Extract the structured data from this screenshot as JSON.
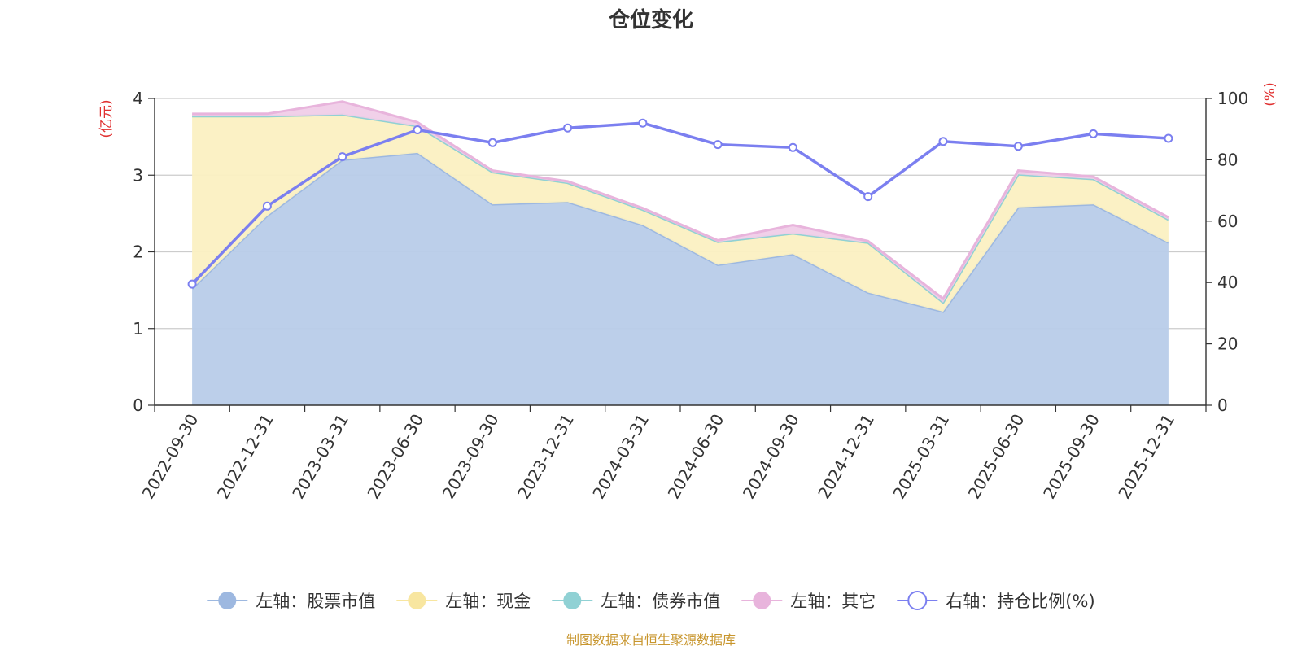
{
  "chart_data": {
    "type": "area",
    "title": "仓位变化",
    "y_left_unit": "(亿元)",
    "y_right_unit": "(%)",
    "y_left_range": [
      0,
      4
    ],
    "y_left_ticks": [
      "0",
      "1",
      "2",
      "3",
      "4"
    ],
    "y_right_range": [
      0,
      100
    ],
    "y_right_ticks": [
      "0",
      "20",
      "40",
      "60",
      "80",
      "100"
    ],
    "categories": [
      "2022-09-30",
      "2022-12-31",
      "2023-03-31",
      "2023-06-30",
      "2023-09-30",
      "2023-12-31",
      "2024-03-31",
      "2024-06-30",
      "2024-09-30",
      "2024-12-31",
      "2025-03-31",
      "2025-06-30",
      "2025-09-30",
      "2025-12-31"
    ],
    "series": [
      {
        "name": "左轴：股票市值",
        "axis": "left",
        "kind": "stacked-area",
        "color": "#9db8e0",
        "fill": "#b8cce9",
        "values": [
          1.52,
          2.47,
          3.2,
          3.29,
          2.62,
          2.65,
          2.35,
          1.83,
          1.97,
          1.47,
          1.22,
          2.58,
          2.62,
          2.12
        ]
      },
      {
        "name": "左轴：现金",
        "axis": "left",
        "kind": "stacked-area",
        "color": "#f8e6a0",
        "fill": "#fbf0c2",
        "values": [
          2.25,
          1.3,
          0.59,
          0.35,
          0.42,
          0.25,
          0.2,
          0.3,
          0.27,
          0.65,
          0.12,
          0.43,
          0.33,
          0.3
        ]
      },
      {
        "name": "左轴：债券市值",
        "axis": "left",
        "kind": "stacked-area",
        "color": "#90d1d4",
        "fill": "#b4e2e4",
        "values": [
          0,
          0,
          0,
          0,
          0,
          0,
          0,
          0,
          0,
          0,
          0,
          0,
          0,
          0
        ]
      },
      {
        "name": "左轴：其它",
        "axis": "left",
        "kind": "stacked-area",
        "color": "#e8b4dc",
        "fill": "#f0cde8",
        "values": [
          0.03,
          0.03,
          0.17,
          0.05,
          0.02,
          0.02,
          0.02,
          0.02,
          0.11,
          0.02,
          0.05,
          0.05,
          0.03,
          0.03
        ]
      },
      {
        "name": "右轴：持仓比例(%)",
        "axis": "right",
        "kind": "line",
        "color": "#7b7ff0",
        "values": [
          39.5,
          64.9,
          81.0,
          89.8,
          85.6,
          90.4,
          92.0,
          85.0,
          84.0,
          68.0,
          86.0,
          84.4,
          88.5,
          87.0
        ]
      }
    ]
  },
  "colors": {
    "axis_unit": "#e03030",
    "source": "#c8962e",
    "grid": "#cccccc",
    "axis": "#333333"
  },
  "source_note": "制图数据来自恒生聚源数据库"
}
